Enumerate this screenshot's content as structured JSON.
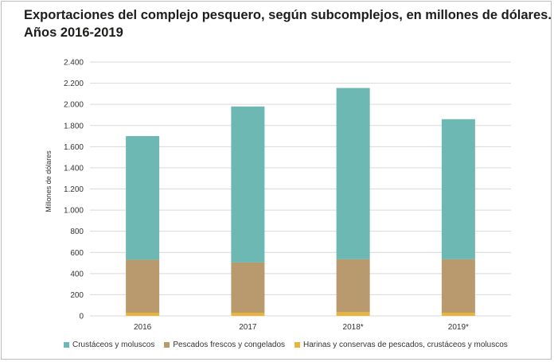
{
  "header": {
    "title_line1": "Exportaciones del complejo pesquero, según subcomplejos, en millones de dólares.",
    "title_line2": "Años 2016-2019"
  },
  "colors": {
    "crustaceos": "#6db8b2",
    "pescados": "#b89a6e",
    "harinas": "#e8b43c",
    "grid": "#d9d9d9",
    "axis_text": "#333333"
  },
  "chart_data": {
    "type": "bar",
    "stacked": true,
    "title": "Exportaciones del complejo pesquero, según subcomplejos, en millones de dólares. Años 2016-2019",
    "xlabel": "",
    "ylabel": "Millones de dólares",
    "ylim": [
      0,
      2400
    ],
    "yticks": [
      0,
      200,
      400,
      600,
      800,
      1000,
      1200,
      1400,
      1600,
      1800,
      2000,
      2200,
      2400
    ],
    "ytick_labels": [
      "0",
      "200",
      "400",
      "600",
      "800",
      "1.000",
      "1.200",
      "1.400",
      "1.600",
      "1.800",
      "2.000",
      "2.200",
      "2.400"
    ],
    "categories": [
      "2016",
      "2017",
      "2018*",
      "2019*"
    ],
    "series": [
      {
        "name": "Harinas y conservas de pescados, crustáceos y moluscos",
        "key": "harinas",
        "values": [
          30,
          30,
          35,
          30
        ]
      },
      {
        "name": "Pescados frescos y congelados",
        "key": "pescados",
        "values": [
          500,
          475,
          500,
          505
        ]
      },
      {
        "name": "Crustáceos y moluscos",
        "key": "crustaceos",
        "values": [
          1170,
          1475,
          1620,
          1325
        ]
      }
    ],
    "legend": [
      {
        "label": "Crustáceos y moluscos",
        "key": "crustaceos"
      },
      {
        "label": "Pescados frescos y congelados",
        "key": "pescados"
      },
      {
        "label": "Harinas y conservas de pescados, crustáceos y moluscos",
        "key": "harinas"
      }
    ],
    "legend_position": "bottom",
    "grid": true
  }
}
